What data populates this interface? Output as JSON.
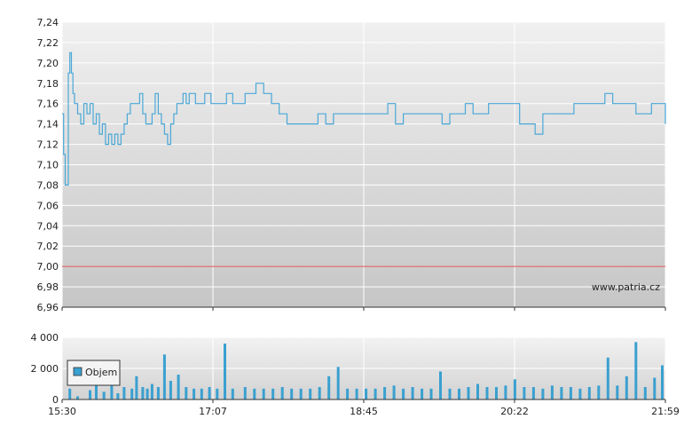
{
  "watermark": "www.patria.cz",
  "chart_data": [
    {
      "type": "line",
      "x_ticks": [
        "15:30",
        "17:07",
        "18:45",
        "20:22",
        "21:59"
      ],
      "y_ticks": [
        "7,24",
        "7,22",
        "7,20",
        "7,18",
        "7,16",
        "7,14",
        "7,12",
        "7,10",
        "7,08",
        "7,06",
        "7,04",
        "7,02",
        "7,00",
        "6,98",
        "6,96"
      ],
      "ylim": [
        6.96,
        7.24
      ],
      "xlim_minutes": [
        0,
        389
      ],
      "grid": true,
      "reference_line": 7.0,
      "reference_color": "#e05050",
      "line_color": "#4aa8d8",
      "series": [
        {
          "x": [
            0,
            1,
            2,
            3,
            4,
            5,
            6,
            7,
            8,
            9,
            10,
            12,
            14,
            16,
            18,
            20,
            22,
            24,
            26,
            28,
            30,
            32,
            34,
            36,
            38,
            40,
            42,
            44,
            46,
            48,
            50,
            52,
            54,
            56,
            58,
            60,
            62,
            64,
            66,
            68,
            70,
            72,
            74,
            76,
            78,
            80,
            82,
            84,
            86,
            88,
            90,
            92,
            94,
            96,
            98,
            100,
            102,
            104,
            106,
            108,
            110,
            112,
            114,
            116,
            118,
            120,
            125,
            130,
            135,
            140,
            145,
            150,
            155,
            160,
            165,
            170,
            175,
            180,
            185,
            190,
            195,
            200,
            205,
            210,
            215,
            220,
            225,
            230,
            235,
            240,
            245,
            250,
            255,
            260,
            265,
            270,
            275,
            280,
            285,
            290,
            295,
            300,
            305,
            310,
            315,
            320,
            325,
            330,
            335,
            340,
            345,
            350,
            355,
            360,
            365,
            370,
            375,
            380,
            385,
            389
          ],
          "y": [
            7.15,
            7.11,
            7.08,
            7.08,
            7.19,
            7.21,
            7.19,
            7.17,
            7.16,
            7.16,
            7.15,
            7.14,
            7.16,
            7.15,
            7.16,
            7.14,
            7.15,
            7.13,
            7.14,
            7.12,
            7.13,
            7.12,
            7.13,
            7.12,
            7.13,
            7.14,
            7.15,
            7.16,
            7.16,
            7.16,
            7.17,
            7.15,
            7.14,
            7.14,
            7.15,
            7.17,
            7.15,
            7.14,
            7.13,
            7.12,
            7.14,
            7.15,
            7.16,
            7.16,
            7.17,
            7.16,
            7.17,
            7.17,
            7.16,
            7.16,
            7.16,
            7.17,
            7.17,
            7.16,
            7.16,
            7.16,
            7.16,
            7.16,
            7.17,
            7.17,
            7.16,
            7.16,
            7.16,
            7.16,
            7.17,
            7.17,
            7.18,
            7.17,
            7.16,
            7.15,
            7.14,
            7.14,
            7.14,
            7.14,
            7.15,
            7.14,
            7.15,
            7.15,
            7.15,
            7.15,
            7.15,
            7.15,
            7.15,
            7.16,
            7.14,
            7.15,
            7.15,
            7.15,
            7.15,
            7.15,
            7.14,
            7.15,
            7.15,
            7.16,
            7.15,
            7.15,
            7.16,
            7.16,
            7.16,
            7.16,
            7.14,
            7.14,
            7.13,
            7.15,
            7.15,
            7.15,
            7.15,
            7.16,
            7.16,
            7.16,
            7.16,
            7.17,
            7.16,
            7.16,
            7.16,
            7.15,
            7.15,
            7.16,
            7.16,
            7.14
          ]
        }
      ]
    },
    {
      "type": "bar",
      "x_ticks": [
        "15:30",
        "17:07",
        "18:45",
        "20:22",
        "21:59"
      ],
      "y_ticks": [
        "4 000",
        "2 000",
        "0"
      ],
      "ylim": [
        0,
        4000
      ],
      "xlim_minutes": [
        0,
        389
      ],
      "legend": {
        "label": "Objem",
        "placement": "bottom-left"
      },
      "bar_color": "#3aa0d0",
      "x": [
        5,
        10,
        18,
        22,
        27,
        32,
        36,
        40,
        45,
        48,
        52,
        55,
        58,
        62,
        66,
        70,
        75,
        80,
        85,
        90,
        95,
        100,
        105,
        110,
        118,
        124,
        130,
        136,
        142,
        148,
        154,
        160,
        166,
        172,
        178,
        184,
        190,
        196,
        202,
        208,
        214,
        220,
        226,
        232,
        238,
        244,
        250,
        256,
        262,
        268,
        274,
        280,
        286,
        292,
        298,
        304,
        310,
        316,
        322,
        328,
        334,
        340,
        346,
        352,
        358,
        364,
        370,
        376,
        382,
        387
      ],
      "values": [
        700,
        200,
        600,
        1200,
        500,
        900,
        400,
        800,
        700,
        1500,
        800,
        700,
        1000,
        800,
        2900,
        1200,
        1600,
        800,
        700,
        700,
        800,
        700,
        3600,
        700,
        800,
        700,
        700,
        700,
        800,
        700,
        700,
        700,
        800,
        1500,
        2100,
        700,
        700,
        700,
        700,
        800,
        900,
        700,
        800,
        700,
        700,
        1800,
        700,
        700,
        800,
        1000,
        800,
        800,
        900,
        1300,
        800,
        800,
        700,
        900,
        800,
        800,
        700,
        800,
        900,
        2700,
        900,
        1500,
        3700,
        800,
        1400,
        2200
      ]
    }
  ]
}
